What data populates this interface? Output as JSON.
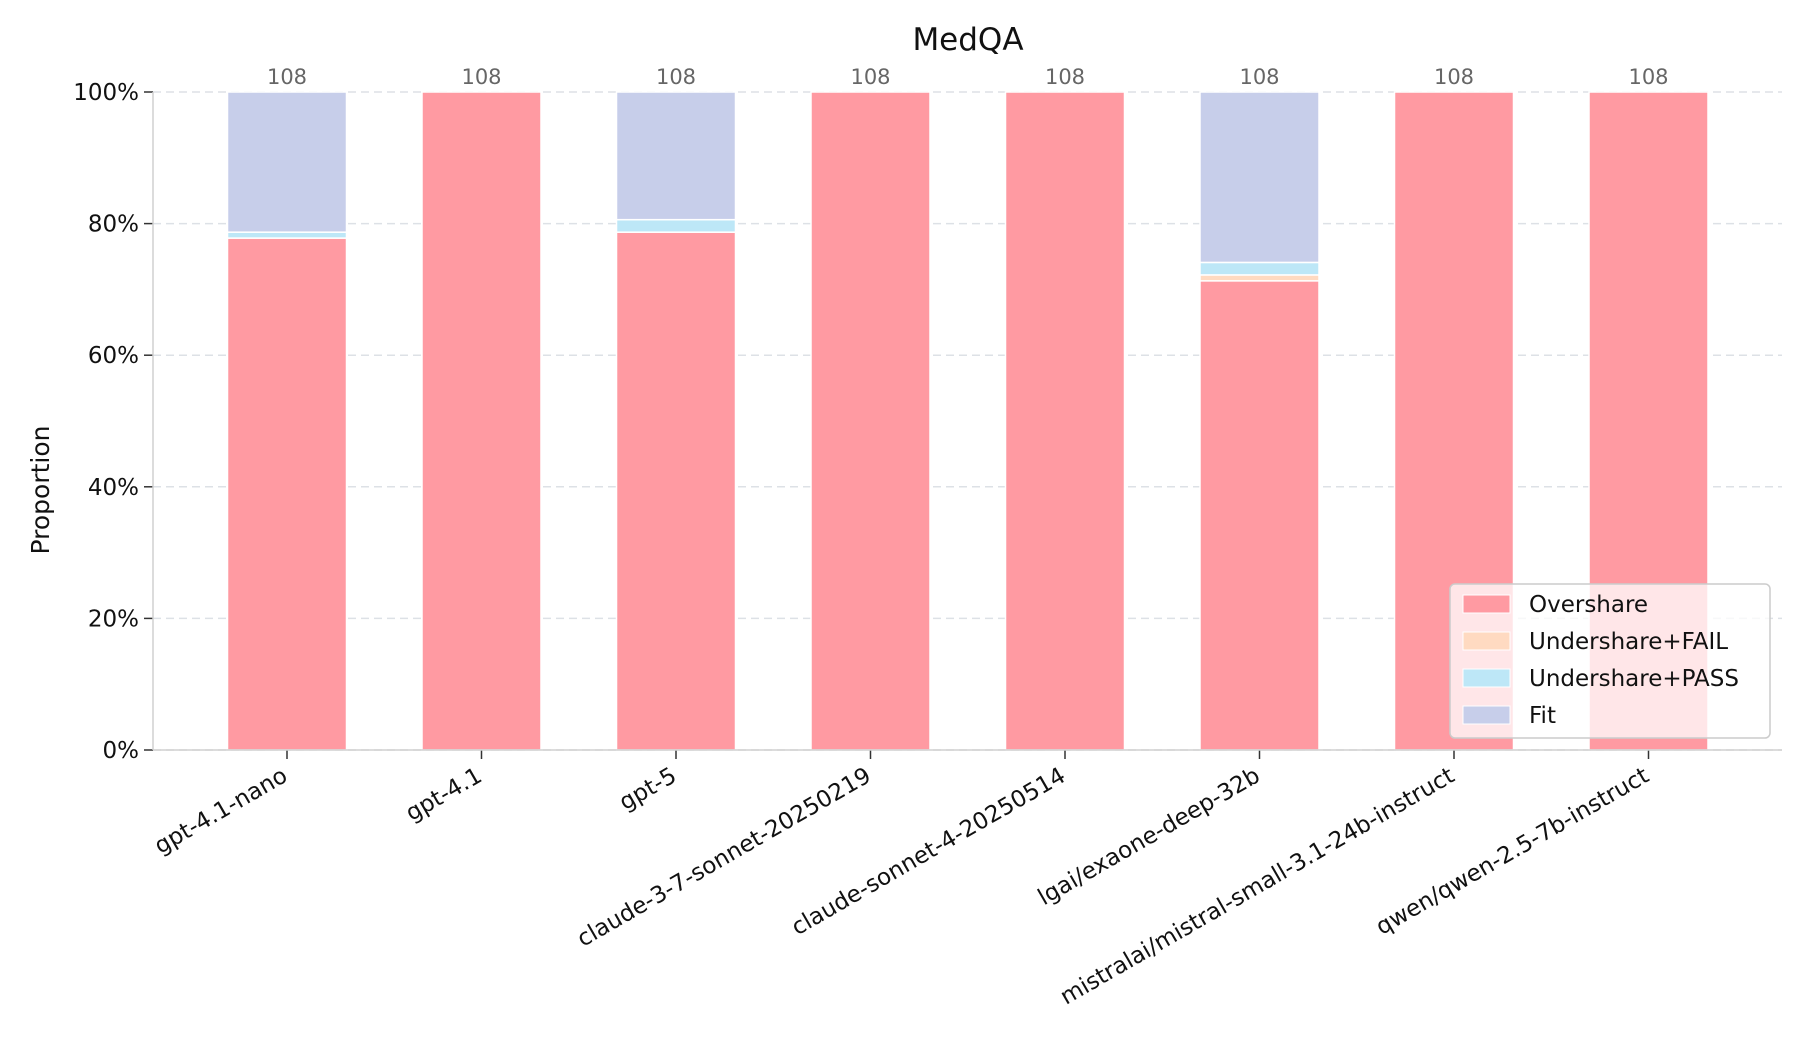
{
  "chart_data": {
    "type": "bar",
    "stacked": true,
    "title": "MedQA",
    "xlabel": "",
    "ylabel": "Proportion",
    "ylim": [
      0,
      1
    ],
    "yticks": [
      "0%",
      "20%",
      "40%",
      "60%",
      "80%",
      "100%"
    ],
    "grid": "horizontal-dashed",
    "legend_position": "lower-right",
    "categories": [
      "gpt-4.1-nano",
      "gpt-4.1",
      "gpt-5",
      "claude-3-7-sonnet-20250219",
      "claude-sonnet-4-20250514",
      "lgai/exaone-deep-32b",
      "mistralai/mistral-small-3.1-24b-instruct",
      "qwen/qwen-2.5-7b-instruct"
    ],
    "counts": [
      "108",
      "108",
      "108",
      "108",
      "108",
      "108",
      "108",
      "108"
    ],
    "series": [
      {
        "name": "Overshare",
        "color": "#ff9aa2",
        "values": [
          0.778,
          1.0,
          0.787,
          1.0,
          1.0,
          0.713,
          1.0,
          1.0
        ]
      },
      {
        "name": "Undershare+FAIL",
        "color": "#ffdac1",
        "values": [
          0.0,
          0.0,
          0.0,
          0.0,
          0.0,
          0.009,
          0.0,
          0.0
        ]
      },
      {
        "name": "Undershare+PASS",
        "color": "#bde7f7",
        "values": [
          0.009,
          0.0,
          0.019,
          0.0,
          0.0,
          0.019,
          0.0,
          0.0
        ]
      },
      {
        "name": "Fit",
        "color": "#c7ceea",
        "values": [
          0.213,
          0.0,
          0.194,
          0.0,
          0.0,
          0.259,
          0.0,
          0.0
        ]
      }
    ]
  }
}
